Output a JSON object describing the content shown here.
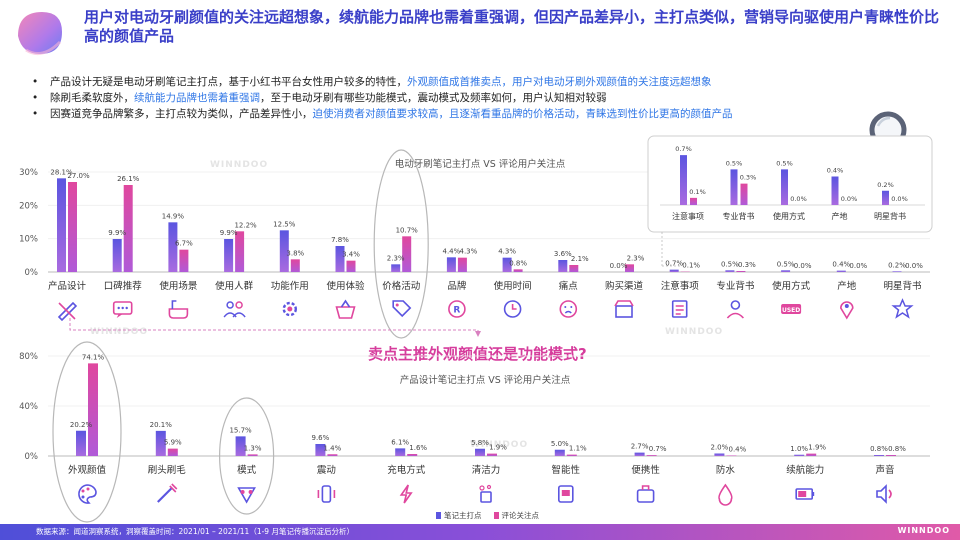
{
  "header": {
    "title": "用户对电动牙刷颜值的关注远超想象，续航能力品牌也需着重强调，但因产品差异小，主打点类似，营销导向驱使用户青睐性价比高的颜值产品"
  },
  "bullets": [
    {
      "plain1": "产品设计无疑是电动牙刷笔记主打点，基于小红书平台女性用户较多的特性，",
      "hl1": "外观颜值成首推卖点，用户对电动牙刷外观颜值的关注度远超想象",
      "plain2": "",
      "hl2": "",
      "plain3": ""
    },
    {
      "plain1": "除刷毛柔软度外，",
      "hl1": "续航能力品牌也需着重强调",
      "plain2": "，至于电动牙刷有哪些功能模式，震动模式及频率如何，用户认知相对较弱",
      "hl2": "",
      "plain3": ""
    },
    {
      "plain1": "因赛道竞争品牌繁多，主打点较为类似，产品差异性小，",
      "hl1": "迫使消费者对颜值要求较高，且逐渐看重品牌的价格活动，青睐选到性价比更高的颜值产品",
      "plain2": "",
      "hl2": "",
      "plain3": ""
    }
  ],
  "question": "卖点主推外观颜值还是功能模式?",
  "legend": {
    "series1": "笔记主打点",
    "series2": "评论关注点"
  },
  "footer": {
    "source": "数据来源：闻道洞察系统，洞察覆盖时间：2021/01 – 2021/11（1-9 月笔记传播沉淀后分析）",
    "brand": "WINNDOO"
  },
  "watermark": "WINNDOO",
  "colors": {
    "series1": "#5b55e0",
    "series2": "#e0479e",
    "title": "#3a3fc8",
    "highlight": "#2f76e6",
    "question": "#d63c9c"
  },
  "chart_data": [
    {
      "type": "bar",
      "title": "电动牙刷笔记主打点 VS 评论用户关注点",
      "categories": [
        "产品设计",
        "口碑推荐",
        "使用场景",
        "使用人群",
        "功能作用",
        "使用体验",
        "价格活动",
        "品牌",
        "使用时间",
        "痛点",
        "购买渠道",
        "注意事项",
        "专业背书",
        "使用方式",
        "产地",
        "明星背书"
      ],
      "icons": [
        "design-icon",
        "chat-icon",
        "bath-icon",
        "people-icon",
        "gear-icon",
        "basket-icon",
        "price-icon",
        "brand-icon",
        "clock-icon",
        "pain-icon",
        "store-icon",
        "note-icon",
        "expert-icon",
        "usage-icon",
        "location-icon",
        "star-icon"
      ],
      "series": [
        {
          "name": "笔记主打点",
          "values": [
            28.1,
            9.9,
            14.9,
            9.9,
            12.5,
            7.8,
            2.3,
            4.4,
            4.3,
            3.6,
            0.0,
            0.7,
            0.5,
            0.5,
            0.4,
            0.2
          ]
        },
        {
          "name": "评论关注点",
          "values": [
            27.0,
            26.1,
            6.7,
            12.2,
            3.8,
            3.4,
            10.7,
            4.3,
            0.8,
            2.1,
            2.3,
            0.1,
            0.3,
            0.0,
            0.0,
            0.0
          ]
        }
      ],
      "value_labels": [
        [
          "28.1%",
          "9.9%",
          "14.9%",
          "9.9%",
          "12.5%",
          "7.8%",
          "2.3%",
          "4.4%",
          "4.3%",
          "3.6%",
          "0.0%",
          "0.7%",
          "0.5%",
          "0.5%",
          "0.4%",
          "0.2%"
        ],
        [
          "27.0%",
          "26.1%",
          "6.7%",
          "12.2%",
          "3.8%",
          "3.4%",
          "10.7%",
          "4.3%",
          "0.8%",
          "2.1%",
          "2.3%",
          "0.1%",
          "0.3%",
          "0.0%",
          "0.0%",
          "0.0%"
        ]
      ],
      "yticks": [
        "0%",
        "10%",
        "20%",
        "30%"
      ],
      "ylim": [
        0,
        30
      ],
      "highlight": "价格活动"
    },
    {
      "type": "bar",
      "title": "",
      "categories": [
        "注意事项",
        "专业背书",
        "使用方式",
        "产地",
        "明星背书"
      ],
      "series": [
        {
          "name": "笔记主打点",
          "values": [
            0.7,
            0.5,
            0.5,
            0.4,
            0.2
          ]
        },
        {
          "name": "评论关注点",
          "values": [
            0.1,
            0.3,
            0.0,
            0.0,
            0.0
          ]
        }
      ],
      "value_labels": [
        [
          "0.7%",
          "0.5%",
          "0.5%",
          "0.4%",
          "0.2%"
        ],
        [
          "0.1%",
          "0.3%",
          "0.0%",
          "0.0%",
          "0.0%"
        ]
      ],
      "ylim": [
        0,
        0.8
      ]
    },
    {
      "type": "bar",
      "title": "产品设计笔记主打点 VS 评论用户关注点",
      "categories": [
        "外观颜值",
        "刷头刷毛",
        "模式",
        "震动",
        "充电方式",
        "清洁力",
        "智能性",
        "便携性",
        "防水",
        "续航能力",
        "声音"
      ],
      "icons": [
        "palette-icon",
        "brush-icon",
        "mode-icon",
        "vibration-icon",
        "charge-icon",
        "clean-icon",
        "smart-icon",
        "portable-icon",
        "waterproof-icon",
        "battery-icon",
        "sound-icon"
      ],
      "series": [
        {
          "name": "笔记主打点",
          "values": [
            20.2,
            20.1,
            15.7,
            9.6,
            6.1,
            5.8,
            5.0,
            2.7,
            2.0,
            1.0,
            0.8
          ]
        },
        {
          "name": "评论关注点",
          "values": [
            74.1,
            5.9,
            1.3,
            1.4,
            1.6,
            1.9,
            1.1,
            0.7,
            0.4,
            1.9,
            0.8
          ]
        }
      ],
      "value_labels": [
        [
          "20.2%",
          "20.1%",
          "15.7%",
          "9.6%",
          "6.1%",
          "5.8%",
          "5.0%",
          "2.7%",
          "2.0%",
          "1.0%",
          "0.8%"
        ],
        [
          "74.1%",
          "5.9%",
          "1.3%",
          "1.4%",
          "1.6%",
          "1.9%",
          "1.1%",
          "0.7%",
          "0.4%",
          "1.9%",
          "0.8%"
        ]
      ],
      "yticks": [
        "0%",
        "40%",
        "80%"
      ],
      "ylim": [
        0,
        80
      ],
      "highlight": [
        "外观颜值",
        "模式"
      ]
    }
  ]
}
